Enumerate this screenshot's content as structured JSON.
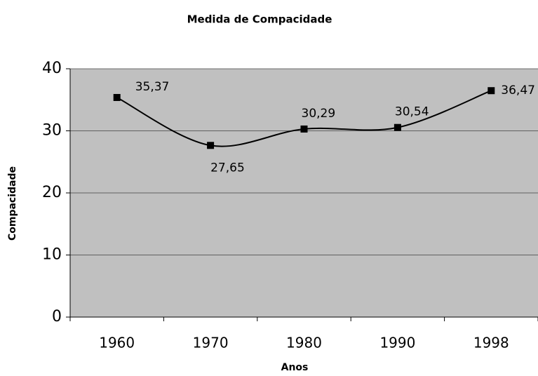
{
  "chart_data": {
    "type": "line",
    "title": "Medida de Compacidade",
    "x_label": "Anos",
    "y_label": "Compacidade",
    "categories": [
      "1960",
      "1970",
      "1980",
      "1990",
      "1998"
    ],
    "series": [
      {
        "name": "Compacidade",
        "color": "#000000",
        "values": [
          35.37,
          27.65,
          30.29,
          30.54,
          36.47
        ],
        "value_labels": [
          "35,37",
          "27,65",
          "30,29",
          "30,54",
          "36,47"
        ]
      }
    ],
    "ylim": [
      0,
      40
    ],
    "yticks": [
      0,
      10,
      20,
      30,
      40
    ],
    "grid": true,
    "plot_background": "#c0c0c0"
  }
}
